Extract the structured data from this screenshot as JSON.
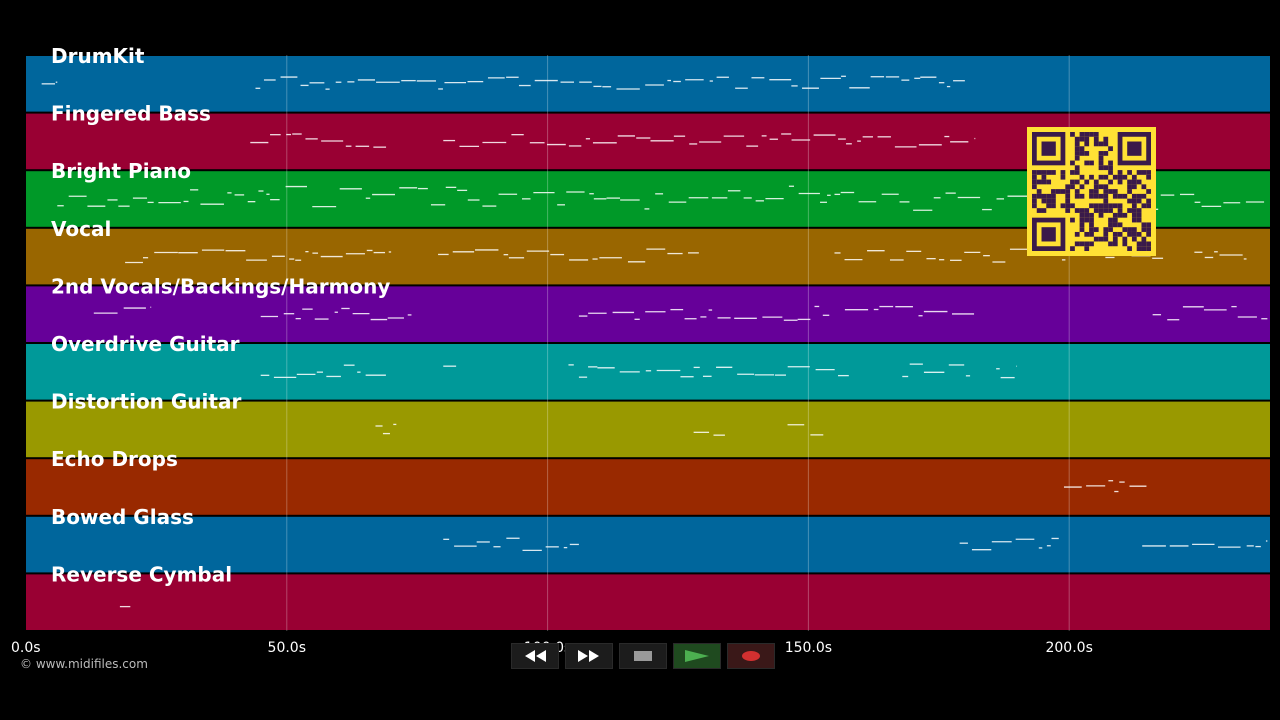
{
  "lanes": [
    {
      "name": "DrumKit",
      "color": "#00669c"
    },
    {
      "name": "Fingered Bass",
      "color": "#990033"
    },
    {
      "name": "Bright Piano",
      "color": "#009928"
    },
    {
      "name": "Vocal",
      "color": "#996600"
    },
    {
      "name": "2nd Vocals/Backings/Harmony",
      "color": "#660099"
    },
    {
      "name": "Overdrive Guitar",
      "color": "#009999"
    },
    {
      "name": "Distortion Guitar",
      "color": "#999900"
    },
    {
      "name": "Echo Drops",
      "color": "#992900"
    },
    {
      "name": "Bowed Glass",
      "color": "#00669c"
    },
    {
      "name": "Reverse Cymbal",
      "color": "#990033"
    }
  ],
  "timeline": {
    "ticks": [
      {
        "value": 0,
        "label": "0.0s"
      },
      {
        "value": 50,
        "label": "50.0s"
      },
      {
        "value": 100,
        "label": "100.0s"
      },
      {
        "value": 150,
        "label": "150.0s"
      },
      {
        "value": 200,
        "label": "200.0s"
      }
    ],
    "range": [
      0,
      238.5
    ]
  },
  "copyright": "© www.midifiles.com",
  "controls": [
    {
      "name": "rewind-button",
      "icon": "rewind-icon"
    },
    {
      "name": "fast-forward-button",
      "icon": "fast-forward-icon"
    },
    {
      "name": "stop-button",
      "icon": "stop-icon"
    },
    {
      "name": "play-button",
      "icon": "play-icon"
    },
    {
      "name": "record-button",
      "icon": "record-icon"
    }
  ],
  "qr_code": {
    "color": "#ffe135",
    "dark": "#3a1a4a",
    "icon": "qr-code-icon"
  }
}
